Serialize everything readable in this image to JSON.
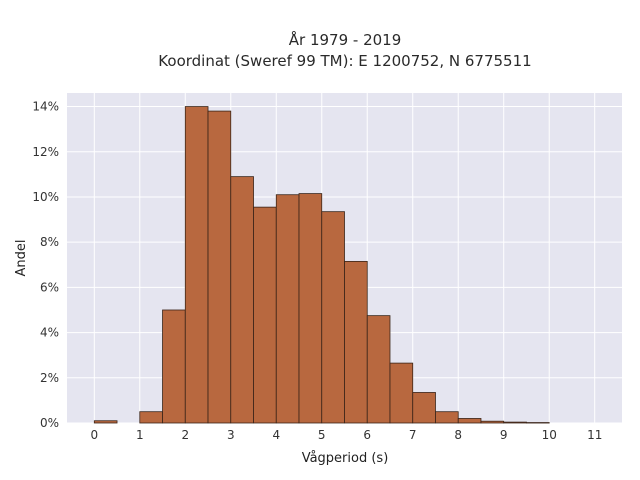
{
  "chart_data": {
    "type": "bar",
    "subtype": "histogram",
    "title": [
      "År 1979 - 2019",
      "Koordinat (Sweref 99 TM): E 1200752, N 6775511"
    ],
    "xlabel": "Vågperiod (s)",
    "ylabel": "Andel",
    "x_ticks": [
      "0",
      "1",
      "2",
      "3",
      "4",
      "5",
      "6",
      "7",
      "8",
      "9",
      "10",
      "11"
    ],
    "y_ticks": [
      "0%",
      "2%",
      "4%",
      "6%",
      "8%",
      "10%",
      "12%",
      "14%"
    ],
    "xlim": [
      -0.6,
      11.6
    ],
    "ylim": [
      0,
      14.6
    ],
    "bin_width": 0.5,
    "bins": [
      {
        "x0": 0.0,
        "value": 0.1
      },
      {
        "x0": 0.5,
        "value": 0.0
      },
      {
        "x0": 1.0,
        "value": 0.5
      },
      {
        "x0": 1.5,
        "value": 5.0
      },
      {
        "x0": 2.0,
        "value": 14.0
      },
      {
        "x0": 2.5,
        "value": 13.8
      },
      {
        "x0": 3.0,
        "value": 10.9
      },
      {
        "x0": 3.5,
        "value": 9.55
      },
      {
        "x0": 4.0,
        "value": 10.1
      },
      {
        "x0": 4.5,
        "value": 10.15
      },
      {
        "x0": 5.0,
        "value": 9.35
      },
      {
        "x0": 5.5,
        "value": 7.15
      },
      {
        "x0": 6.0,
        "value": 4.75
      },
      {
        "x0": 6.5,
        "value": 2.65
      },
      {
        "x0": 7.0,
        "value": 1.35
      },
      {
        "x0": 7.5,
        "value": 0.5
      },
      {
        "x0": 8.0,
        "value": 0.2
      },
      {
        "x0": 8.5,
        "value": 0.08
      },
      {
        "x0": 9.0,
        "value": 0.04
      },
      {
        "x0": 9.5,
        "value": 0.02
      }
    ],
    "grid": true,
    "colors": {
      "plot_background": "#e5e5f0",
      "grid": "#ffffff",
      "bar_fill": "#b8683f",
      "bar_stroke": "#3a2418"
    }
  }
}
